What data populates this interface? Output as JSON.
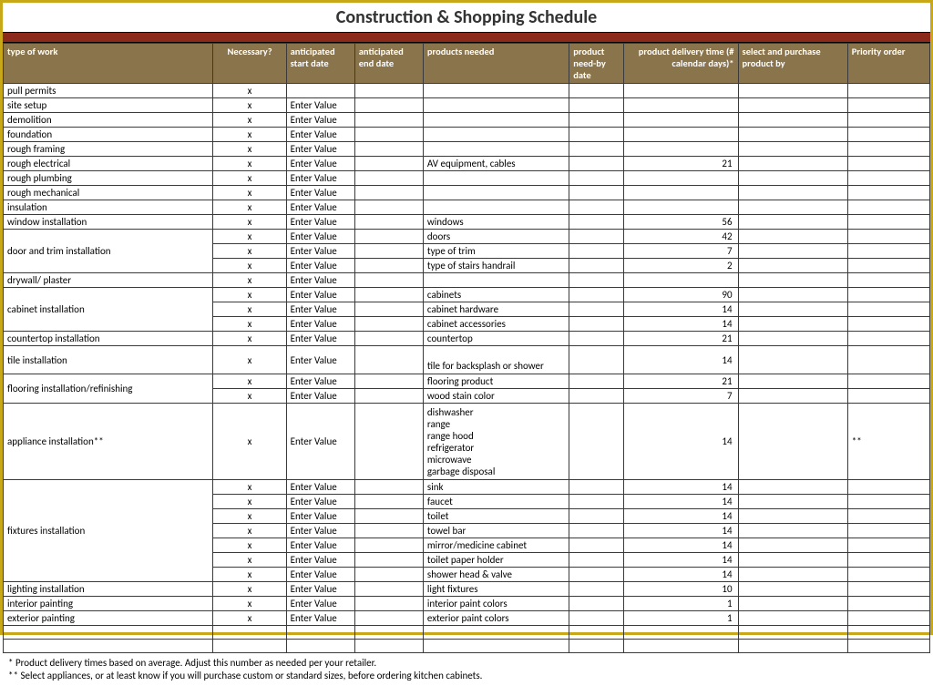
{
  "title": "Construction & Shopping Schedule",
  "columns": [
    "type of work",
    "Necessary?",
    "anticipated start date",
    "anticipated end date",
    "products needed",
    "product    need-by date",
    "product delivery time (# calendar days)*",
    "select and purchase product by",
    "Priority order"
  ],
  "rows": [
    {
      "work": "pull permits",
      "nec": "x",
      "start": "",
      "prod": "",
      "deliv": "",
      "prio": ""
    },
    {
      "work": "site setup",
      "nec": "x",
      "start": "Enter Value",
      "prod": "",
      "deliv": "",
      "prio": ""
    },
    {
      "work": "demolition",
      "nec": "x",
      "start": "Enter Value",
      "prod": "",
      "deliv": "",
      "prio": ""
    },
    {
      "work": "foundation",
      "nec": "x",
      "start": "Enter Value",
      "prod": "",
      "deliv": "",
      "prio": ""
    },
    {
      "work": "rough framing",
      "nec": "x",
      "start": "Enter Value",
      "prod": "",
      "deliv": "",
      "prio": ""
    },
    {
      "work": "rough electrical",
      "nec": "x",
      "start": "Enter Value",
      "prod": "AV equipment, cables",
      "deliv": "21",
      "prio": ""
    },
    {
      "work": "rough plumbing",
      "nec": "x",
      "start": "Enter Value",
      "prod": "",
      "deliv": "",
      "prio": ""
    },
    {
      "work": "rough mechanical",
      "nec": "x",
      "start": "Enter Value",
      "prod": "",
      "deliv": "",
      "prio": ""
    },
    {
      "work": "insulation",
      "nec": "x",
      "start": "Enter Value",
      "prod": "",
      "deliv": "",
      "prio": ""
    },
    {
      "work": "window installation",
      "nec": "x",
      "start": "Enter Value",
      "prod": "windows",
      "deliv": "56",
      "prio": ""
    },
    {
      "work": "",
      "nec": "x",
      "start": "Enter Value",
      "prod": "doors",
      "deliv": "42",
      "prio": ""
    },
    {
      "work": "",
      "nec": "x",
      "start": "Enter Value",
      "prod": "type of trim",
      "deliv": "7",
      "prio": ""
    },
    {
      "work": "",
      "nec": "x",
      "start": "Enter Value",
      "prod": "type of stairs handrail",
      "deliv": "2",
      "prio": ""
    },
    {
      "work": "drywall/ plaster",
      "nec": "x",
      "start": "Enter Value",
      "prod": "",
      "deliv": "",
      "prio": ""
    },
    {
      "work": "",
      "nec": "x",
      "start": "Enter Value",
      "prod": "cabinets",
      "deliv": "90",
      "prio": ""
    },
    {
      "work": "",
      "nec": "x",
      "start": "Enter Value",
      "prod": "cabinet hardware",
      "deliv": "14",
      "prio": ""
    },
    {
      "work": "",
      "nec": "x",
      "start": "Enter Value",
      "prod": "cabinet accessories",
      "deliv": "14",
      "prio": ""
    },
    {
      "work": "countertop installation",
      "nec": "x",
      "start": "Enter Value",
      "prod": "countertop",
      "deliv": "21",
      "prio": ""
    },
    {
      "work": "tile installation",
      "nec": "x",
      "start": "Enter Value",
      "prod": "tile for backsplash or shower",
      "deliv": "14",
      "prio": ""
    },
    {
      "work": "",
      "nec": "x",
      "start": "Enter Value",
      "prod": "flooring product",
      "deliv": "21",
      "prio": ""
    },
    {
      "work": "",
      "nec": "x",
      "start": "Enter Value",
      "prod": "wood stain color",
      "deliv": "7",
      "prio": ""
    },
    {
      "work": "",
      "nec": "x",
      "start": "Enter Value",
      "prod": "sink",
      "deliv": "14",
      "prio": ""
    },
    {
      "work": "",
      "nec": "x",
      "start": "Enter Value",
      "prod": "faucet",
      "deliv": "14",
      "prio": ""
    },
    {
      "work": "",
      "nec": "x",
      "start": "Enter Value",
      "prod": "toilet",
      "deliv": "14",
      "prio": ""
    },
    {
      "work": "",
      "nec": "x",
      "start": "Enter Value",
      "prod": "towel bar",
      "deliv": "14",
      "prio": ""
    },
    {
      "work": "",
      "nec": "x",
      "start": "Enter Value",
      "prod": "mirror/medicine cabinet",
      "deliv": "14",
      "prio": ""
    },
    {
      "work": "",
      "nec": "x",
      "start": "Enter Value",
      "prod": "toilet paper holder",
      "deliv": "14",
      "prio": ""
    },
    {
      "work": "",
      "nec": "x",
      "start": "Enter Value",
      "prod": "shower head & valve",
      "deliv": "14",
      "prio": ""
    },
    {
      "work": "lighting installation",
      "nec": "x",
      "start": "Enter Value",
      "prod": "light fixtures",
      "deliv": "10",
      "prio": ""
    },
    {
      "work": "interior painting",
      "nec": "x",
      "start": "Enter Value",
      "prod": "interior paint colors",
      "deliv": "1",
      "prio": ""
    },
    {
      "work": "exterior painting",
      "nec": "x",
      "start": "Enter Value",
      "prod": "exterior paint colors",
      "deliv": "1",
      "prio": ""
    },
    {
      "work": "",
      "nec": "",
      "start": "",
      "prod": "",
      "deliv": "",
      "prio": ""
    },
    {
      "work": "",
      "nec": "",
      "start": "",
      "prod": "",
      "deliv": "",
      "prio": ""
    }
  ],
  "merges": {
    "door_trim": {
      "label": "door and trim installation",
      "start": 10,
      "span": 3
    },
    "cabinet": {
      "label": "cabinet installation",
      "start": 14,
      "span": 3
    },
    "tile": {
      "label": "tile installation",
      "start": 18,
      "span": 1,
      "height": 2
    },
    "flooring": {
      "label": "flooring installation/refinishing",
      "start": 19,
      "span": 2
    },
    "appliance": {
      "label": "appliance installation**",
      "nec": "x",
      "start_val": "Enter Value",
      "products": [
        "dishwasher",
        "range",
        "range hood",
        "refrigerator",
        "microwave",
        "garbage disposal"
      ],
      "deliv": "14",
      "prio": "**"
    },
    "fixtures": {
      "label": "fixtures installation",
      "start": 21,
      "span": 7
    }
  },
  "footnotes": [
    "* Product delivery times based on average. Adjust this number as needed per your retailer.",
    "** Select appliances, or at least know if you will purchase custom or standard sizes, before ordering kitchen cabinets."
  ],
  "colors": {
    "border": "#c9a817",
    "header_bg": "#8a744c",
    "redbar": "#8b2a1a",
    "cell_border": "#3a3a3a"
  }
}
